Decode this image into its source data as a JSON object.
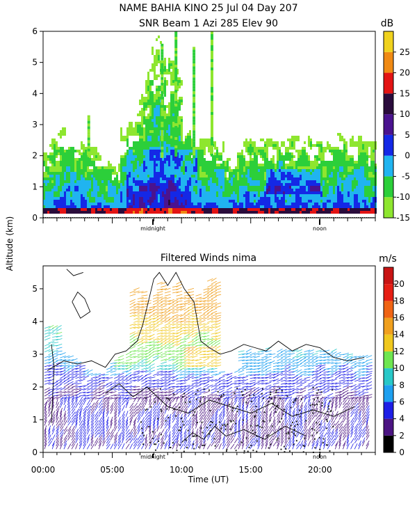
{
  "header": {
    "title_line1": "NAME BAHIA KINO  25 Jul 04 Day 207",
    "title_line2": "SNR Beam 1 Azi 285 Elev 90"
  },
  "shared": {
    "ylabel": "Altitude (km)",
    "xlabel": "Time (UT)",
    "x_ticks": [
      "00:00",
      "05:00",
      "10:00",
      "15:00",
      "20:00"
    ],
    "markers": [
      "midnight",
      "noon"
    ]
  },
  "chart_data": [
    {
      "type": "heatmap",
      "title": "",
      "ylim": [
        0,
        6
      ],
      "y_ticks": [
        "0",
        "1",
        "2",
        "3",
        "4",
        "5",
        "6"
      ],
      "x_range_hours": [
        0,
        24
      ],
      "colorbar": {
        "unit": "dB",
        "ticks": [
          "-15",
          "-10",
          "-5",
          "0",
          "5",
          "10",
          "15",
          "20",
          "25"
        ],
        "levels": [
          {
            "min": -15,
            "max": -10,
            "color": "#8ee62f"
          },
          {
            "min": -10,
            "max": -5,
            "color": "#2ccf3a"
          },
          {
            "min": -5,
            "max": 0,
            "color": "#20b4f0"
          },
          {
            "min": 0,
            "max": 5,
            "color": "#1428e6"
          },
          {
            "min": 5,
            "max": 10,
            "color": "#4a138f"
          },
          {
            "min": 10,
            "max": 15,
            "color": "#2a0c3c"
          },
          {
            "min": 15,
            "max": 20,
            "color": "#e31414"
          },
          {
            "min": 20,
            "max": 25,
            "color": "#f08a14"
          },
          {
            "min": 25,
            "max": 30,
            "color": "#f0d21e"
          }
        ]
      }
    },
    {
      "type": "scatter",
      "title": "Filtered Winds nima",
      "ylim": [
        0,
        5.7
      ],
      "y_ticks": [
        "0",
        "1",
        "2",
        "3",
        "4",
        "5"
      ],
      "x_range_hours": [
        0,
        24
      ],
      "colorbar": {
        "unit": "m/s",
        "ticks": [
          "0",
          "2",
          "4",
          "6",
          "8",
          "10",
          "12",
          "14",
          "16",
          "18",
          "20"
        ],
        "levels": [
          {
            "min": 0,
            "max": 2,
            "color": "#000000"
          },
          {
            "min": 2,
            "max": 4,
            "color": "#4b1482"
          },
          {
            "min": 4,
            "max": 6,
            "color": "#1e1ee6"
          },
          {
            "min": 6,
            "max": 8,
            "color": "#1ea0f0"
          },
          {
            "min": 8,
            "max": 10,
            "color": "#28c8c8"
          },
          {
            "min": 10,
            "max": 12,
            "color": "#6ee650"
          },
          {
            "min": 12,
            "max": 14,
            "color": "#f0c81e"
          },
          {
            "min": 14,
            "max": 16,
            "color": "#f0a01e"
          },
          {
            "min": 16,
            "max": 18,
            "color": "#f06414"
          },
          {
            "min": 18,
            "max": 20,
            "color": "#e61e14"
          },
          {
            "min": 20,
            "max": 22,
            "color": "#c81414"
          }
        ]
      }
    }
  ]
}
